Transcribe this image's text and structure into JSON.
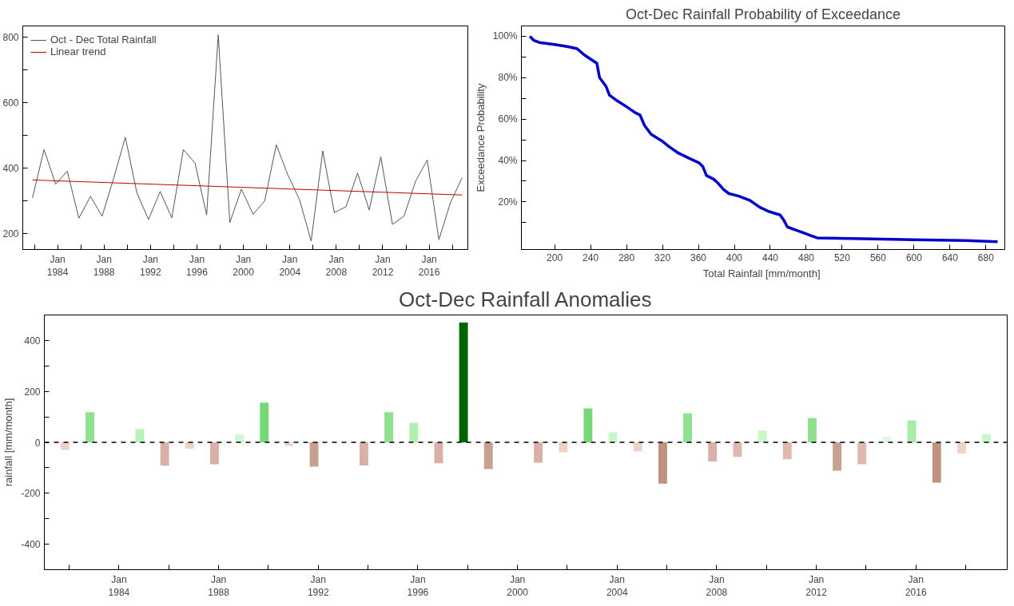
{
  "chart_data": [
    {
      "type": "line",
      "legend": "top left",
      "x": [
        "1981-11",
        "1982-11",
        "1983-11",
        "1984-11",
        "1985-11",
        "1986-11",
        "1987-11",
        "1988-11",
        "1989-11",
        "1990-11",
        "1991-11",
        "1992-11",
        "1993-11",
        "1994-11",
        "1995-11",
        "1996-11",
        "1997-11",
        "1998-11",
        "1999-11",
        "2000-11",
        "2001-11",
        "2002-11",
        "2003-11",
        "2004-11",
        "2005-11",
        "2006-11",
        "2007-11",
        "2008-11",
        "2009-11",
        "2010-11",
        "2011-11",
        "2012-11",
        "2013-11",
        "2014-11",
        "2015-11",
        "2016-11",
        "2017-11",
        "2018-11"
      ],
      "series": [
        {
          "name": "Oct - Dec Total Rainfall",
          "color": "#555555",
          "values": [
            308,
            456,
            350,
            390,
            246,
            313,
            252,
            369,
            494,
            323,
            242,
            328,
            247,
            456,
            415,
            256,
            808,
            233,
            335,
            258,
            299,
            471,
            378,
            303,
            176,
            452,
            263,
            281,
            384,
            271,
            434,
            227,
            252,
            360,
            424,
            180,
            294,
            370
          ]
        },
        {
          "name": "Linear trend",
          "color": "#c00000",
          "type": "line",
          "x": [
            "1981-11",
            "2018-11"
          ],
          "values": [
            363,
            317
          ]
        }
      ],
      "xlim": [
        "1981-01",
        "2019-05"
      ],
      "ylim": [
        150,
        835
      ],
      "xticks": [
        {
          "value": "1982-01",
          "label": null
        },
        {
          "value": "1984-01",
          "label": "Jan\n1984"
        },
        {
          "value": "1986-01",
          "label": null
        },
        {
          "value": "1988-01",
          "label": "Jan\n1988"
        },
        {
          "value": "1990-01",
          "label": null
        },
        {
          "value": "1992-01",
          "label": "Jan\n1992"
        },
        {
          "value": "1994-01",
          "label": null
        },
        {
          "value": "1996-01",
          "label": "Jan\n1996"
        },
        {
          "value": "1998-01",
          "label": null
        },
        {
          "value": "2000-01",
          "label": "Jan\n2000"
        },
        {
          "value": "2002-01",
          "label": null
        },
        {
          "value": "2004-01",
          "label": "Jan\n2004"
        },
        {
          "value": "2006-01",
          "label": null
        },
        {
          "value": "2008-01",
          "label": "Jan\n2008"
        },
        {
          "value": "2010-01",
          "label": null
        },
        {
          "value": "2012-01",
          "label": "Jan\n2012"
        },
        {
          "value": "2014-01",
          "label": null
        },
        {
          "value": "2016-01",
          "label": "Jan\n2016"
        },
        {
          "value": "2018-01",
          "label": null
        }
      ],
      "yticks": [
        200,
        {
          "value": 300,
          "label": null
        },
        400,
        {
          "value": 500,
          "label": null
        },
        600,
        {
          "value": 700,
          "label": null
        },
        800
      ]
    },
    {
      "type": "line",
      "title": "Oct-Dec Rainfall Probability of Exceedance",
      "xlabel": "Total Rainfall  [mm/month]",
      "ylabel": "Exceedance Probability",
      "color": "#0000cc",
      "x": [
        172.4,
        177,
        183,
        200,
        215,
        225,
        233,
        240,
        247,
        250,
        257,
        261,
        269,
        280,
        290,
        295,
        300,
        307.5,
        319,
        327,
        338,
        350,
        361,
        365,
        369,
        377,
        382,
        388,
        394,
        405,
        417,
        428,
        438,
        451,
        455,
        459,
        469,
        480,
        492,
        542,
        599,
        657,
        693
      ],
      "values": [
        100,
        98,
        97,
        96,
        95,
        94,
        91,
        89,
        87,
        80,
        76,
        71.6,
        69,
        66,
        63,
        62,
        57,
        52.6,
        49.6,
        46.8,
        43.5,
        41,
        38.8,
        37,
        32.7,
        31,
        29,
        26,
        24,
        22.8,
        20.8,
        17.5,
        15.4,
        13.7,
        11.2,
        7.9,
        6.3,
        4.6,
        2.6,
        2.2,
        1.7,
        1.3,
        0.8
      ],
      "xlim": [
        163,
        701
      ],
      "ylim": [
        -3,
        105
      ],
      "xticks": [
        200,
        240,
        280,
        320,
        360,
        400,
        440,
        480,
        520,
        560,
        600,
        640,
        680
      ],
      "yticks": [
        {
          "value": 10,
          "label": null
        },
        {
          "value": 20,
          "label": "20%"
        },
        {
          "value": 30,
          "label": null
        },
        {
          "value": 40,
          "label": "40%"
        },
        {
          "value": 50,
          "label": null
        },
        {
          "value": 60,
          "label": "60%"
        },
        {
          "value": 70,
          "label": null
        },
        {
          "value": 80,
          "label": "80%"
        },
        {
          "value": 90,
          "label": null
        },
        {
          "value": 100,
          "label": "100%"
        }
      ]
    },
    {
      "type": "bar",
      "title": "Oct-Dec Rainfall Anomalies",
      "ylabel": "rainfall [mm/month]",
      "x": [
        "1981-11",
        "1982-11",
        "1983-11",
        "1984-11",
        "1985-11",
        "1986-11",
        "1987-11",
        "1988-11",
        "1989-11",
        "1990-11",
        "1991-11",
        "1992-11",
        "1993-11",
        "1994-11",
        "1995-11",
        "1996-11",
        "1997-11",
        "1998-11",
        "1999-11",
        "2000-11",
        "2001-11",
        "2002-11",
        "2003-11",
        "2004-11",
        "2005-11",
        "2006-11",
        "2007-11",
        "2008-11",
        "2009-11",
        "2010-11",
        "2011-11",
        "2012-11",
        "2013-11",
        "2014-11",
        "2015-11",
        "2016-11",
        "2017-11",
        "2018-11"
      ],
      "values": [
        -30,
        118,
        null,
        52,
        -92,
        -25,
        -86,
        31,
        156,
        -15,
        -96,
        null,
        -91,
        118,
        77,
        -82,
        470,
        -105,
        null,
        -80,
        -39,
        133,
        40,
        -35,
        -162,
        114,
        -75,
        -57,
        46,
        -67,
        96,
        -111,
        -86,
        22,
        86,
        -158,
        -44,
        32
      ],
      "colors": [
        "#f0d0c8",
        "#8fe08f",
        null,
        "#b8f0b8",
        "#d8b0a8",
        "#f0d0c8",
        "#d8b0a8",
        "#d0f8d0",
        "#77d877",
        "#f0d8d0",
        "#c8a090",
        null,
        "#d8b0a8",
        "#8fe08f",
        "#b0f0b0",
        "#d8b0a8",
        "#006400",
        "#c8a090",
        null,
        "#d8b0a8",
        "#f0d0c8",
        "#77d877",
        "#c8f8c8",
        "#f0d0c8",
        "#c09080",
        "#8fe08f",
        "#d8b0a8",
        "#e0b8b0",
        "#c8f8c8",
        "#e0b8b0",
        "#8fe08f",
        "#c8a090",
        "#e0b8b0",
        "#e0f8e0",
        "#a8eca8",
        "#c09080",
        "#f0d0c8",
        "#c8f8c8"
      ],
      "xlim": [
        "1981-01",
        "2019-09"
      ],
      "ylim": [
        -500,
        500
      ],
      "xticks": [
        {
          "value": "1982-01",
          "label": null
        },
        {
          "value": "1984-01",
          "label": "Jan\n1984"
        },
        {
          "value": "1986-01",
          "label": null
        },
        {
          "value": "1988-01",
          "label": "Jan\n1988"
        },
        {
          "value": "1990-01",
          "label": null
        },
        {
          "value": "1992-01",
          "label": "Jan\n1992"
        },
        {
          "value": "1994-01",
          "label": null
        },
        {
          "value": "1996-01",
          "label": "Jan\n1996"
        },
        {
          "value": "1998-01",
          "label": null
        },
        {
          "value": "2000-01",
          "label": "Jan\n2000"
        },
        {
          "value": "2002-01",
          "label": null
        },
        {
          "value": "2004-01",
          "label": "Jan\n2004"
        },
        {
          "value": "2006-01",
          "label": null
        },
        {
          "value": "2008-01",
          "label": "Jan\n2008"
        },
        {
          "value": "2010-01",
          "label": null
        },
        {
          "value": "2012-01",
          "label": "Jan\n2012"
        },
        {
          "value": "2014-01",
          "label": null
        },
        {
          "value": "2016-01",
          "label": "Jan\n2016"
        },
        {
          "value": "2018-01",
          "label": null
        }
      ],
      "yticks": [
        -400,
        {
          "value": -300,
          "label": null
        },
        -200,
        {
          "value": -100,
          "label": null
        },
        0,
        {
          "value": 100,
          "label": null
        },
        200,
        {
          "value": 300,
          "label": null
        },
        400
      ],
      "ref_lines": [
        {
          "axis": "y",
          "value": 0,
          "line_style": "dashed",
          "color": "#000000"
        }
      ]
    }
  ]
}
